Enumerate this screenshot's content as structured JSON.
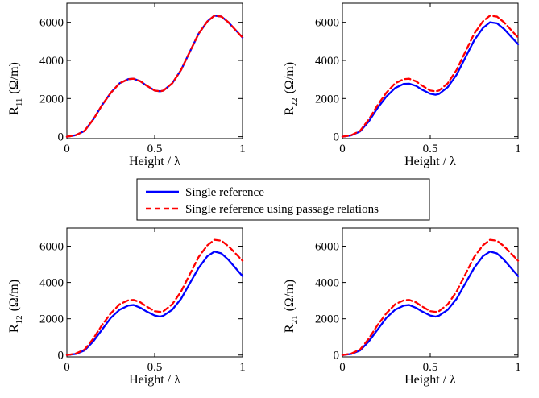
{
  "legend": {
    "entries": [
      {
        "label": "Single reference",
        "color": "#0000ff",
        "style": "solid"
      },
      {
        "label": "Single reference using passage relations",
        "color": "#ff0000",
        "style": "dashed"
      }
    ]
  },
  "chart_data": [
    {
      "type": "line",
      "xlabel": "Height / λ",
      "ylabel_main": "R",
      "ylabel_sub": "11",
      "ylabel_unit": "(Ω/m)",
      "xlim": [
        0,
        1
      ],
      "ylim": [
        -100,
        7000
      ],
      "xticks": [
        "0",
        "0.5",
        "1"
      ],
      "yticks": [
        "0",
        "2000",
        "4000",
        "6000"
      ],
      "x": [
        0,
        0.05,
        0.1,
        0.15,
        0.2,
        0.25,
        0.3,
        0.35,
        0.38,
        0.42,
        0.45,
        0.5,
        0.53,
        0.55,
        0.6,
        0.65,
        0.7,
        0.75,
        0.8,
        0.84,
        0.88,
        0.92,
        0.96,
        1.0
      ],
      "series": [
        {
          "name": "Single reference",
          "values": [
            0,
            80,
            300,
            900,
            1650,
            2300,
            2800,
            3020,
            3040,
            2900,
            2700,
            2420,
            2380,
            2420,
            2800,
            3500,
            4450,
            5400,
            6050,
            6350,
            6300,
            6000,
            5600,
            5200
          ]
        },
        {
          "name": "Single reference using passage relations",
          "values": [
            0,
            80,
            300,
            900,
            1650,
            2300,
            2800,
            3020,
            3040,
            2900,
            2700,
            2420,
            2380,
            2420,
            2800,
            3500,
            4450,
            5400,
            6050,
            6350,
            6300,
            6000,
            5600,
            5200
          ]
        }
      ]
    },
    {
      "type": "line",
      "xlabel": "Height / λ",
      "ylabel_main": "R",
      "ylabel_sub": "22",
      "ylabel_unit": "(Ω/m)",
      "xlim": [
        0,
        1
      ],
      "ylim": [
        -100,
        7000
      ],
      "xticks": [
        "0",
        "0.5",
        "1"
      ],
      "yticks": [
        "0",
        "2000",
        "4000",
        "6000"
      ],
      "x": [
        0,
        0.05,
        0.1,
        0.15,
        0.2,
        0.25,
        0.3,
        0.35,
        0.38,
        0.42,
        0.45,
        0.5,
        0.53,
        0.55,
        0.6,
        0.65,
        0.7,
        0.75,
        0.8,
        0.84,
        0.88,
        0.92,
        0.96,
        1.0
      ],
      "series": [
        {
          "name": "Single reference",
          "values": [
            0,
            70,
            270,
            800,
            1500,
            2100,
            2550,
            2770,
            2780,
            2660,
            2480,
            2250,
            2200,
            2240,
            2600,
            3250,
            4150,
            5050,
            5700,
            6000,
            5950,
            5650,
            5250,
            4850
          ]
        },
        {
          "name": "Single reference using passage relations",
          "values": [
            0,
            80,
            300,
            900,
            1650,
            2300,
            2800,
            3020,
            3040,
            2900,
            2700,
            2420,
            2380,
            2420,
            2800,
            3500,
            4450,
            5400,
            6050,
            6350,
            6300,
            6000,
            5600,
            5200
          ]
        }
      ]
    },
    {
      "type": "line",
      "xlabel": "Height / λ",
      "ylabel_main": "R",
      "ylabel_sub": "12",
      "ylabel_unit": "(Ω/m)",
      "xlim": [
        0,
        1
      ],
      "ylim": [
        -100,
        7000
      ],
      "xticks": [
        "0",
        "0.5",
        "1"
      ],
      "yticks": [
        "0",
        "2000",
        "4000",
        "6000"
      ],
      "x": [
        0,
        0.05,
        0.1,
        0.15,
        0.2,
        0.25,
        0.3,
        0.35,
        0.38,
        0.42,
        0.45,
        0.5,
        0.53,
        0.55,
        0.6,
        0.65,
        0.7,
        0.75,
        0.8,
        0.84,
        0.88,
        0.92,
        0.96,
        1.0
      ],
      "series": [
        {
          "name": "Single reference",
          "values": [
            0,
            60,
            250,
            750,
            1400,
            2050,
            2500,
            2730,
            2760,
            2600,
            2420,
            2180,
            2120,
            2170,
            2500,
            3100,
            3950,
            4800,
            5450,
            5700,
            5600,
            5250,
            4800,
            4350
          ]
        },
        {
          "name": "Single reference using passage relations",
          "values": [
            0,
            80,
            300,
            900,
            1650,
            2300,
            2800,
            3020,
            3040,
            2900,
            2700,
            2420,
            2380,
            2420,
            2800,
            3500,
            4450,
            5400,
            6050,
            6350,
            6300,
            6000,
            5600,
            5200
          ]
        }
      ]
    },
    {
      "type": "line",
      "xlabel": "Height / λ",
      "ylabel_main": "R",
      "ylabel_sub": "21",
      "ylabel_unit": "(Ω/m)",
      "xlim": [
        0,
        1
      ],
      "ylim": [
        -100,
        7000
      ],
      "xticks": [
        "0",
        "0.5",
        "1"
      ],
      "yticks": [
        "0",
        "2000",
        "4000",
        "6000"
      ],
      "x": [
        0,
        0.05,
        0.1,
        0.15,
        0.2,
        0.25,
        0.3,
        0.35,
        0.38,
        0.42,
        0.45,
        0.5,
        0.53,
        0.55,
        0.6,
        0.65,
        0.7,
        0.75,
        0.8,
        0.84,
        0.88,
        0.92,
        0.96,
        1.0
      ],
      "series": [
        {
          "name": "Single reference",
          "values": [
            0,
            60,
            250,
            750,
            1400,
            2050,
            2500,
            2730,
            2760,
            2600,
            2420,
            2180,
            2120,
            2170,
            2500,
            3100,
            3950,
            4800,
            5450,
            5700,
            5600,
            5250,
            4800,
            4350
          ]
        },
        {
          "name": "Single reference using passage relations",
          "values": [
            0,
            80,
            300,
            900,
            1650,
            2300,
            2800,
            3020,
            3040,
            2900,
            2700,
            2420,
            2380,
            2420,
            2800,
            3500,
            4450,
            5400,
            6050,
            6350,
            6300,
            6000,
            5600,
            5200
          ]
        }
      ]
    }
  ]
}
